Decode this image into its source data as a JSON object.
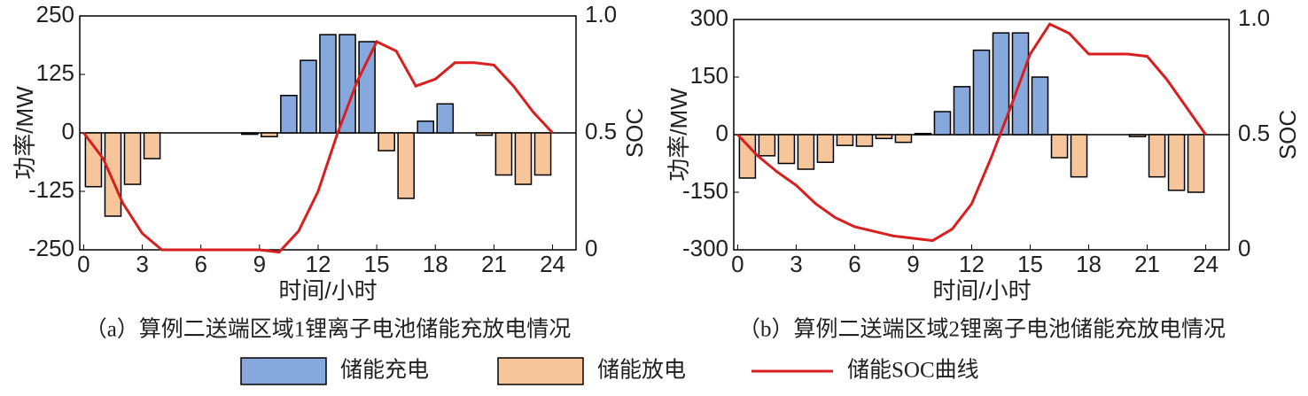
{
  "chart_data": [
    {
      "type": "bar-line",
      "ylabel": "功率/MW",
      "y2label": "SOC",
      "xlabel": "时间/小时",
      "caption": "（a）算例二送端区域1锂离子电池储能充放电情况",
      "xlim": [
        -0.2,
        25.2
      ],
      "xticks": [
        0,
        3,
        6,
        9,
        12,
        15,
        18,
        21,
        24
      ],
      "ylim": [
        -250,
        250
      ],
      "yticks": [
        -250,
        -125,
        0,
        125,
        250
      ],
      "y2lim": [
        0,
        1
      ],
      "y2ticks": [
        0,
        0.5,
        {
          "value": 1,
          "label": "1.0"
        }
      ],
      "series": [
        {
          "x": [
            0.5,
            1.5,
            2.5,
            3.5,
            4.5,
            5.5,
            6.5,
            7.5,
            8.5,
            9.5,
            10.5,
            11.5,
            12.5,
            13.5,
            14.5,
            15.5,
            16.5,
            17.5,
            18.5,
            19.5,
            20.5,
            21.5,
            22.5,
            23.5
          ],
          "values": [
            null,
            null,
            null,
            null,
            null,
            null,
            null,
            null,
            null,
            null,
            80,
            155,
            210,
            210,
            195,
            null,
            null,
            25,
            62,
            null,
            null,
            null,
            null,
            null
          ]
        },
        {
          "x": [
            0.5,
            1.5,
            2.5,
            3.5,
            4.5,
            5.5,
            6.5,
            7.5,
            8.5,
            9.5,
            10.5,
            11.5,
            12.5,
            13.5,
            14.5,
            15.5,
            16.5,
            17.5,
            18.5,
            19.5,
            20.5,
            21.5,
            22.5,
            23.5
          ],
          "values": [
            -115,
            -178,
            -110,
            -55,
            null,
            null,
            null,
            null,
            -3,
            -8,
            null,
            null,
            null,
            null,
            null,
            -38,
            -140,
            null,
            null,
            null,
            -5,
            -90,
            -110,
            -90
          ]
        },
        {
          "axis": "y2",
          "x": [
            0,
            1,
            2,
            3,
            4,
            5,
            6,
            7,
            8,
            9,
            10,
            11,
            12,
            13,
            14,
            15,
            16,
            17,
            18,
            19,
            20,
            21,
            22,
            23,
            24
          ],
          "values": [
            0.5,
            0.39,
            0.2,
            0.07,
            0,
            0,
            0,
            0,
            0,
            0,
            -0.01,
            0.08,
            0.25,
            0.5,
            0.72,
            0.89,
            0.85,
            0.7,
            0.73,
            0.8,
            0.8,
            0.79,
            0.7,
            0.59,
            0.5
          ]
        }
      ]
    },
    {
      "type": "bar-line",
      "ylabel": "功率/MW",
      "y2label": "SOC",
      "xlabel": "时间/小时",
      "caption": "（b）算例二送端区域2锂离子电池储能充放电情况",
      "xlim": [
        -0.2,
        25.2
      ],
      "xticks": [
        0,
        3,
        6,
        9,
        12,
        15,
        18,
        21,
        24
      ],
      "ylim": [
        -300,
        300
      ],
      "yticks": [
        -300,
        -150,
        0,
        150,
        300
      ],
      "y2lim": [
        0,
        1
      ],
      "y2ticks": [
        0,
        0.5,
        {
          "value": 1,
          "label": "1.0"
        }
      ],
      "series": [
        {
          "x": [
            0.5,
            1.5,
            2.5,
            3.5,
            4.5,
            5.5,
            6.5,
            7.5,
            8.5,
            9.5,
            10.5,
            11.5,
            12.5,
            13.5,
            14.5,
            15.5,
            16.5,
            17.5,
            18.5,
            19.5,
            20.5,
            21.5,
            22.5,
            23.5
          ],
          "values": [
            null,
            null,
            null,
            null,
            null,
            null,
            null,
            null,
            null,
            3,
            60,
            125,
            220,
            265,
            265,
            150,
            null,
            null,
            null,
            null,
            null,
            null,
            null,
            null
          ]
        },
        {
          "x": [
            0.5,
            1.5,
            2.5,
            3.5,
            4.5,
            5.5,
            6.5,
            7.5,
            8.5,
            9.5,
            10.5,
            11.5,
            12.5,
            13.5,
            14.5,
            15.5,
            16.5,
            17.5,
            18.5,
            19.5,
            20.5,
            21.5,
            22.5,
            23.5
          ],
          "values": [
            -113,
            -55,
            -75,
            -90,
            -72,
            -28,
            -30,
            -10,
            -20,
            null,
            null,
            null,
            null,
            null,
            null,
            null,
            -60,
            -110,
            null,
            null,
            -5,
            -110,
            -145,
            -150
          ]
        },
        {
          "axis": "y2",
          "x": [
            0,
            1,
            2,
            3,
            4,
            5,
            6,
            7,
            8,
            9,
            10,
            11,
            12,
            13,
            14,
            15,
            16,
            17,
            18,
            19,
            20,
            21,
            22,
            23,
            24
          ],
          "values": [
            0.5,
            0.41,
            0.34,
            0.28,
            0.2,
            0.14,
            0.1,
            0.08,
            0.06,
            0.05,
            0.04,
            0.09,
            0.2,
            0.4,
            0.62,
            0.85,
            0.98,
            0.94,
            0.85,
            0.85,
            0.85,
            0.84,
            0.74,
            0.62,
            0.5
          ]
        }
      ]
    }
  ],
  "legend": [
    {
      "name": "储能充电",
      "color": "#87a8dd"
    },
    {
      "name": "储能放电",
      "color": "#f6c59a"
    },
    {
      "name": "储能SOC曲线",
      "color": "#d81e1e"
    }
  ]
}
